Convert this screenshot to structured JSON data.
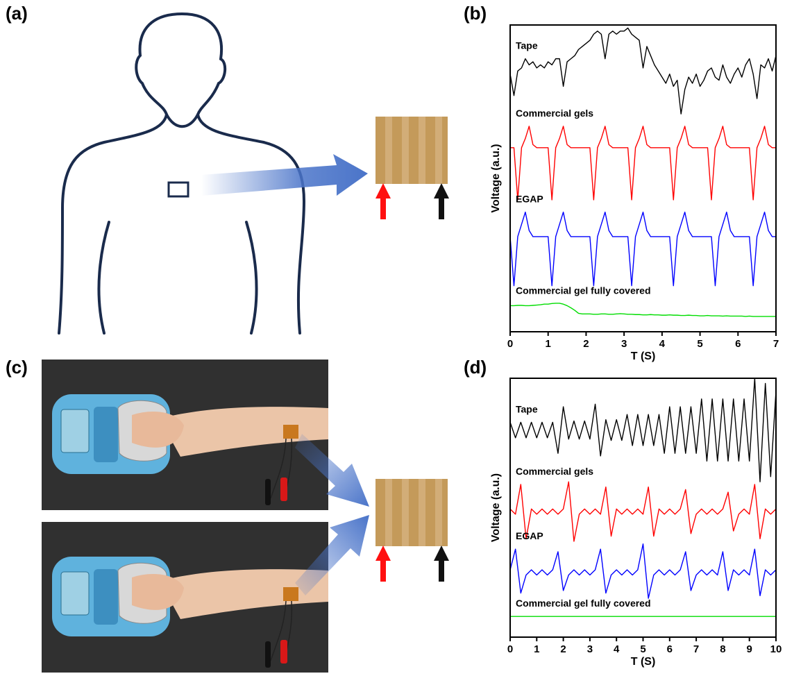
{
  "labels": [
    "(a)",
    "(b)",
    "(c)",
    "(d)"
  ],
  "chart_data": [
    {
      "type": "line",
      "xlabel": "T (S)",
      "ylabel": "Voltage (a.u.)",
      "x": [
        0,
        0.1,
        0.2,
        0.3,
        0.4,
        0.5,
        0.6,
        0.7,
        0.8,
        0.9,
        1,
        1.1,
        1.2,
        1.3,
        1.4,
        1.5,
        1.6,
        1.7,
        1.8,
        1.9,
        2,
        2.1,
        2.2,
        2.3,
        2.4,
        2.5,
        2.6,
        2.7,
        2.8,
        2.9,
        3,
        3.1,
        3.2,
        3.3,
        3.4,
        3.5,
        3.6,
        3.7,
        3.8,
        3.9,
        4,
        4.1,
        4.2,
        4.3,
        4.4,
        4.5,
        4.6,
        4.7,
        4.8,
        4.9,
        5,
        5.1,
        5.2,
        5.3,
        5.4,
        5.5,
        5.6,
        5.7,
        5.8,
        5.9,
        6,
        6.1,
        6.2,
        6.3,
        6.4,
        6.5,
        6.6,
        6.7,
        6.8,
        6.9,
        7
      ],
      "xlim": [
        0,
        7
      ],
      "xticks": [
        0,
        1,
        2,
        3,
        4,
        5,
        6,
        7
      ],
      "ylim": [
        0,
        10
      ],
      "series": [
        {
          "name": "Tape",
          "color": "#000000",
          "values": [
            8.4,
            7.7,
            8.5,
            8.6,
            8.9,
            8.7,
            8.8,
            8.6,
            8.7,
            8.6,
            8.8,
            8.7,
            8.9,
            8.9,
            8.0,
            8.8,
            8.9,
            9.0,
            9.2,
            9.3,
            9.4,
            9.5,
            9.7,
            9.8,
            9.7,
            8.9,
            9.7,
            9.8,
            9.7,
            9.8,
            9.8,
            9.9,
            9.7,
            9.6,
            9.5,
            8.6,
            9.3,
            9.0,
            8.7,
            8.5,
            8.3,
            8.1,
            8.4,
            8.0,
            8.2,
            7.1,
            7.9,
            8.3,
            8.1,
            8.4,
            8.0,
            8.2,
            8.5,
            8.6,
            8.3,
            8.2,
            8.7,
            8.3,
            8.1,
            8.4,
            8.6,
            8.3,
            8.7,
            8.9,
            8.4,
            7.6,
            8.7,
            8.6,
            8.9,
            8.5,
            9.0
          ]
        },
        {
          "name": "Commercial gels",
          "color": "#ff0000",
          "values": [
            6.0,
            6.0,
            4.3,
            6.0,
            6.3,
            6.7,
            6.1,
            6.0,
            6.0,
            6.0,
            6.0,
            4.3,
            6.0,
            6.3,
            6.7,
            6.1,
            6.0,
            6.0,
            6.0,
            6.0,
            6.0,
            6.0,
            4.3,
            6.0,
            6.3,
            6.7,
            6.1,
            6.0,
            6.0,
            6.0,
            6.0,
            6.0,
            4.3,
            6.0,
            6.3,
            6.7,
            6.1,
            6.0,
            6.0,
            6.0,
            6.0,
            6.0,
            6.0,
            4.3,
            6.0,
            6.3,
            6.7,
            6.1,
            6.0,
            6.0,
            6.0,
            6.0,
            6.0,
            4.3,
            6.0,
            6.3,
            6.7,
            6.1,
            6.0,
            6.0,
            6.0,
            6.0,
            6.0,
            6.0,
            4.3,
            6.0,
            6.3,
            6.7,
            6.1,
            6.0,
            6.0
          ]
        },
        {
          "name": "EGAP",
          "color": "#0000ff",
          "values": [
            3.1,
            1.5,
            3.1,
            3.5,
            3.9,
            3.3,
            3.1,
            3.1,
            3.1,
            3.1,
            3.1,
            1.5,
            3.1,
            3.5,
            3.9,
            3.3,
            3.1,
            3.1,
            3.1,
            3.1,
            3.1,
            3.1,
            1.5,
            3.1,
            3.5,
            3.9,
            3.3,
            3.1,
            3.1,
            3.1,
            3.1,
            3.1,
            1.5,
            3.1,
            3.5,
            3.9,
            3.3,
            3.1,
            3.1,
            3.1,
            3.1,
            3.1,
            3.1,
            1.5,
            3.1,
            3.5,
            3.9,
            3.3,
            3.1,
            3.1,
            3.1,
            3.1,
            3.1,
            3.1,
            1.5,
            3.1,
            3.5,
            3.9,
            3.3,
            3.1,
            3.1,
            3.1,
            3.1,
            3.1,
            1.5,
            3.1,
            3.5,
            3.9,
            3.3,
            3.1,
            3.1
          ]
        },
        {
          "name": "Commercial gel fully covered",
          "color": "#00dd00",
          "values": [
            0.85,
            0.85,
            0.86,
            0.86,
            0.85,
            0.85,
            0.86,
            0.87,
            0.88,
            0.9,
            0.9,
            0.92,
            0.93,
            0.93,
            0.9,
            0.85,
            0.78,
            0.7,
            0.6,
            0.58,
            0.58,
            0.58,
            0.57,
            0.57,
            0.58,
            0.58,
            0.57,
            0.57,
            0.58,
            0.59,
            0.58,
            0.57,
            0.57,
            0.56,
            0.56,
            0.55,
            0.55,
            0.56,
            0.55,
            0.55,
            0.54,
            0.54,
            0.55,
            0.54,
            0.54,
            0.53,
            0.53,
            0.54,
            0.53,
            0.53,
            0.52,
            0.52,
            0.53,
            0.52,
            0.52,
            0.52,
            0.51,
            0.52,
            0.51,
            0.51,
            0.51,
            0.51,
            0.5,
            0.51,
            0.5,
            0.5,
            0.5,
            0.5,
            0.5,
            0.5,
            0.5
          ]
        }
      ]
    },
    {
      "type": "line",
      "xlabel": "T (S)",
      "ylabel": "Voltage (a.u.)",
      "x": [
        0,
        0.2,
        0.4,
        0.6,
        0.8,
        1,
        1.2,
        1.4,
        1.6,
        1.8,
        2,
        2.2,
        2.4,
        2.6,
        2.8,
        3,
        3.2,
        3.4,
        3.6,
        3.8,
        4,
        4.2,
        4.4,
        4.6,
        4.8,
        5,
        5.2,
        5.4,
        5.6,
        5.8,
        6,
        6.2,
        6.4,
        6.6,
        6.8,
        7,
        7.2,
        7.4,
        7.6,
        7.8,
        8,
        8.2,
        8.4,
        8.6,
        8.8,
        9,
        9.2,
        9.4,
        9.6,
        9.8,
        10
      ],
      "xlim": [
        0,
        10
      ],
      "xticks": [
        0,
        1,
        2,
        3,
        4,
        5,
        6,
        7,
        8,
        9,
        10
      ],
      "ylim": [
        0,
        10
      ],
      "series": [
        {
          "name": "Tape",
          "color": "#000000",
          "values": [
            8.3,
            7.7,
            8.3,
            7.7,
            8.3,
            7.7,
            8.3,
            7.7,
            8.3,
            7.1,
            8.9,
            7.65,
            8.35,
            7.65,
            8.35,
            7.65,
            9.0,
            7.0,
            8.4,
            7.6,
            8.4,
            7.6,
            8.6,
            7.4,
            8.6,
            7.4,
            8.6,
            7.4,
            8.6,
            7.1,
            8.9,
            7.1,
            8.9,
            7.1,
            8.9,
            7.1,
            9.2,
            6.8,
            9.2,
            6.8,
            9.2,
            6.8,
            9.2,
            6.8,
            9.2,
            6.8,
            10.0,
            6.0,
            9.8,
            6.2,
            9.5
          ]
        },
        {
          "name": "Commercial gels",
          "color": "#ff0000",
          "values": [
            4.95,
            4.75,
            5.9,
            3.8,
            4.95,
            4.75,
            4.95,
            4.75,
            4.95,
            4.75,
            4.95,
            6.0,
            3.7,
            4.75,
            4.95,
            4.75,
            4.95,
            4.75,
            5.8,
            3.9,
            4.95,
            4.75,
            4.95,
            4.75,
            4.95,
            4.75,
            5.8,
            3.9,
            4.95,
            4.75,
            4.95,
            4.75,
            4.95,
            5.7,
            4.0,
            4.75,
            4.95,
            4.75,
            4.95,
            4.75,
            4.95,
            5.6,
            4.1,
            4.75,
            4.95,
            4.75,
            5.9,
            3.8,
            4.95,
            4.75,
            4.95
          ]
        },
        {
          "name": "EGAP",
          "color": "#0000ff",
          "values": [
            2.6,
            3.4,
            1.7,
            2.4,
            2.6,
            2.4,
            2.6,
            2.4,
            2.6,
            3.3,
            1.8,
            2.4,
            2.6,
            2.4,
            2.6,
            2.4,
            2.6,
            3.4,
            1.7,
            2.4,
            2.6,
            2.4,
            2.6,
            2.4,
            2.6,
            3.6,
            1.5,
            2.4,
            2.6,
            2.4,
            2.6,
            2.4,
            2.6,
            3.3,
            1.8,
            2.4,
            2.6,
            2.4,
            2.6,
            2.4,
            3.3,
            1.8,
            2.6,
            2.4,
            2.6,
            2.4,
            3.4,
            1.6,
            2.6,
            2.4,
            2.6
          ]
        },
        {
          "name": "Commercial gel fully covered",
          "color": "#00dd00",
          "values": [
            0.8,
            0.8,
            0.8,
            0.8,
            0.8,
            0.8,
            0.8,
            0.8,
            0.8,
            0.8,
            0.8,
            0.8,
            0.8,
            0.8,
            0.8,
            0.8,
            0.8,
            0.8,
            0.8,
            0.8,
            0.8,
            0.8,
            0.8,
            0.8,
            0.8,
            0.8,
            0.8,
            0.8,
            0.8,
            0.8,
            0.8,
            0.8,
            0.8,
            0.8,
            0.8,
            0.8,
            0.8,
            0.8,
            0.8,
            0.8,
            0.8,
            0.8,
            0.8,
            0.8,
            0.8,
            0.8,
            0.8,
            0.8,
            0.8,
            0.8,
            0.8
          ]
        }
      ]
    }
  ]
}
